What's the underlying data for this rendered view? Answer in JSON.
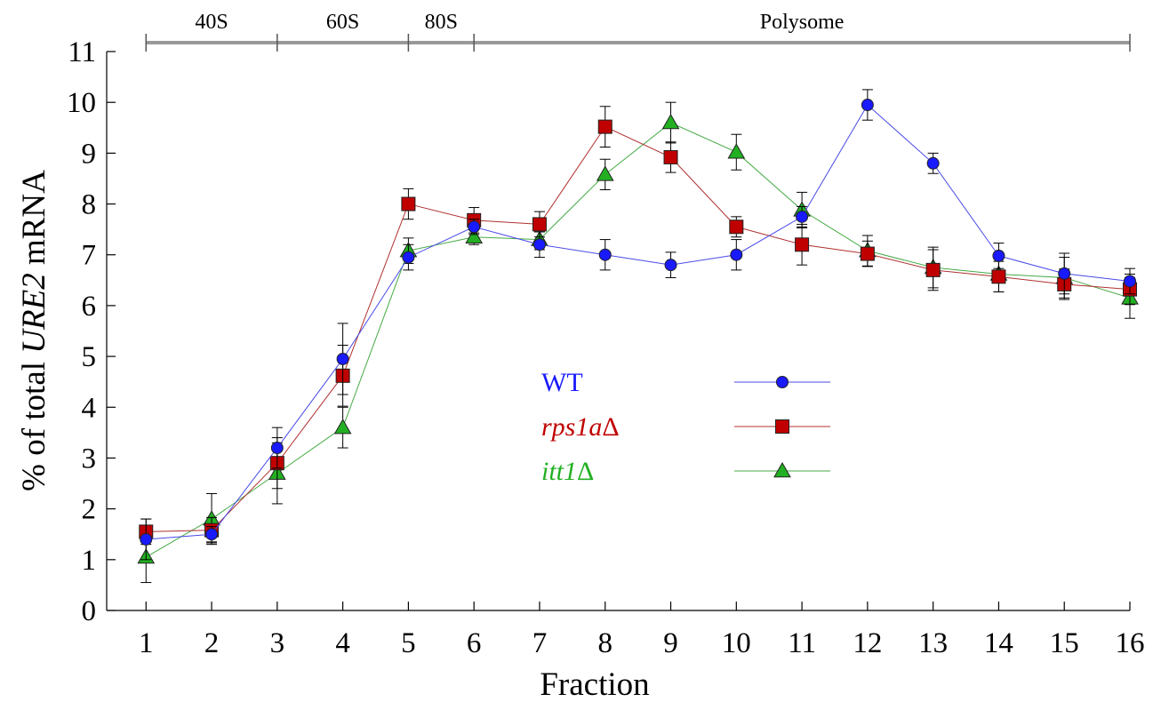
{
  "chart_data": {
    "type": "line",
    "xlabel": "Fraction",
    "ylabel": {
      "prefix": "% of total ",
      "italic": "URE2",
      "suffix": " mRNA"
    },
    "x": [
      1,
      2,
      3,
      4,
      5,
      6,
      7,
      8,
      9,
      10,
      11,
      12,
      13,
      14,
      15,
      16
    ],
    "x_ticks": [
      "1",
      "2",
      "3",
      "4",
      "5",
      "6",
      "7",
      "8",
      "9",
      "10",
      "11",
      "12",
      "13",
      "14",
      "15",
      "16"
    ],
    "y_ticks": [
      "0",
      "1",
      "2",
      "3",
      "4",
      "5",
      "6",
      "7",
      "8",
      "9",
      "10",
      "11"
    ],
    "xlim": [
      0.4,
      16
    ],
    "ylim": [
      0,
      11
    ],
    "grid": false,
    "legend_position": "center",
    "fraction_bands": [
      {
        "label": "40S",
        "from": 1,
        "to": 3
      },
      {
        "label": "60S",
        "from": 3,
        "to": 5
      },
      {
        "label": "80S",
        "from": 5,
        "to": 6
      },
      {
        "label": "Polysome",
        "from": 6,
        "to": 16
      }
    ],
    "series": [
      {
        "name": "WT",
        "name_italic": "",
        "name_suffix": "",
        "marker": "circle",
        "color": "#1a1aff",
        "line_color": "#4a4ae8",
        "values": [
          1.4,
          1.5,
          3.2,
          4.95,
          6.95,
          7.55,
          7.2,
          7.0,
          6.8,
          7.0,
          7.75,
          9.95,
          8.8,
          6.98,
          6.63,
          6.48
        ],
        "errors": [
          0.4,
          0.15,
          0.4,
          0.7,
          0.25,
          0.15,
          0.25,
          0.3,
          0.25,
          0.3,
          0.2,
          0.3,
          0.2,
          0.25,
          0.4,
          0.25
        ]
      },
      {
        "name": "",
        "name_italic": "rps1a",
        "name_suffix": "Δ",
        "marker": "square",
        "color": "#c00000",
        "line_color": "#b03030",
        "values": [
          1.55,
          1.58,
          2.9,
          4.62,
          8.0,
          7.68,
          7.6,
          9.52,
          8.92,
          7.55,
          7.2,
          7.02,
          6.7,
          6.57,
          6.42,
          6.32
        ],
        "errors": [
          0.25,
          0.25,
          0.5,
          0.6,
          0.3,
          0.25,
          0.25,
          0.4,
          0.3,
          0.2,
          0.4,
          0.25,
          0.4,
          0.3,
          0.3,
          0.3
        ]
      },
      {
        "name": "",
        "name_italic": "itt1",
        "name_suffix": "Δ",
        "marker": "triangle",
        "color": "#22b022",
        "line_color": "#44aa44",
        "values": [
          1.05,
          1.8,
          2.7,
          3.6,
          7.08,
          7.35,
          7.3,
          8.58,
          9.6,
          9.02,
          7.88,
          7.08,
          6.75,
          6.62,
          6.55,
          6.15
        ],
        "errors": [
          0.5,
          0.5,
          0.6,
          0.4,
          0.25,
          0.15,
          0.2,
          0.3,
          0.4,
          0.35,
          0.35,
          0.3,
          0.4,
          0.35,
          0.4,
          0.4
        ]
      }
    ]
  }
}
